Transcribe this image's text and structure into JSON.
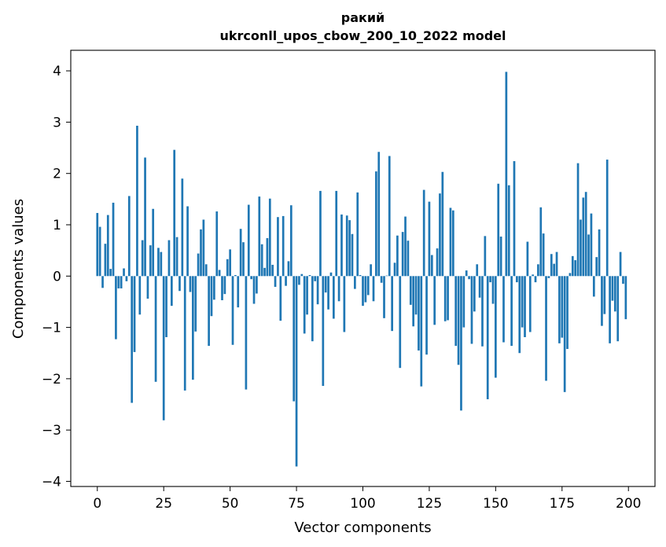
{
  "chart_data": {
    "type": "bar",
    "title_line1": "ракий",
    "title_line2": "ukrconll_upos_cbow_200_10_2022 model",
    "xlabel": "Vector components",
    "ylabel": "Components values",
    "xlim": [
      -10,
      210
    ],
    "ylim": [
      -4.1,
      4.4
    ],
    "xticks": [
      0,
      25,
      50,
      75,
      100,
      125,
      150,
      175,
      200
    ],
    "xtick_labels": [
      "0",
      "25",
      "50",
      "75",
      "100",
      "125",
      "150",
      "175",
      "200"
    ],
    "yticks": [
      -4,
      -3,
      -2,
      -1,
      0,
      1,
      2,
      3,
      4
    ],
    "ytick_labels": [
      "−4",
      "−3",
      "−2",
      "−1",
      "0",
      "1",
      "2",
      "3",
      "4"
    ],
    "bar_color": "#1f77b4",
    "grid": false,
    "x": [
      0,
      1,
      2,
      3,
      4,
      5,
      6,
      7,
      8,
      9,
      10,
      11,
      12,
      13,
      14,
      15,
      16,
      17,
      18,
      19,
      20,
      21,
      22,
      23,
      24,
      25,
      26,
      27,
      28,
      29,
      30,
      31,
      32,
      33,
      34,
      35,
      36,
      37,
      38,
      39,
      40,
      41,
      42,
      43,
      44,
      45,
      46,
      47,
      48,
      49,
      50,
      51,
      52,
      53,
      54,
      55,
      56,
      57,
      58,
      59,
      60,
      61,
      62,
      63,
      64,
      65,
      66,
      67,
      68,
      69,
      70,
      71,
      72,
      73,
      74,
      75,
      76,
      77,
      78,
      79,
      80,
      81,
      82,
      83,
      84,
      85,
      86,
      87,
      88,
      89,
      90,
      91,
      92,
      93,
      94,
      95,
      96,
      97,
      98,
      99,
      100,
      101,
      102,
      103,
      104,
      105,
      106,
      107,
      108,
      109,
      110,
      111,
      112,
      113,
      114,
      115,
      116,
      117,
      118,
      119,
      120,
      121,
      122,
      123,
      124,
      125,
      126,
      127,
      128,
      129,
      130,
      131,
      132,
      133,
      134,
      135,
      136,
      137,
      138,
      139,
      140,
      141,
      142,
      143,
      144,
      145,
      146,
      147,
      148,
      149,
      150,
      151,
      152,
      153,
      154,
      155,
      156,
      157,
      158,
      159,
      160,
      161,
      162,
      163,
      164,
      165,
      166,
      167,
      168,
      169,
      170,
      171,
      172,
      173,
      174,
      175,
      176,
      177,
      178,
      179,
      180,
      181,
      182,
      183,
      184,
      185,
      186,
      187,
      188,
      189,
      190,
      191,
      192,
      193,
      194,
      195,
      196,
      197,
      198,
      199
    ],
    "values": [
      1.23,
      0.96,
      -0.23,
      0.63,
      1.19,
      0.14,
      1.43,
      -1.23,
      -0.24,
      -0.24,
      0.15,
      -0.1,
      1.56,
      -2.47,
      -1.48,
      2.93,
      -0.75,
      0.7,
      2.31,
      -0.44,
      0.6,
      1.31,
      -2.06,
      0.55,
      0.47,
      -2.81,
      -1.19,
      0.7,
      -0.58,
      2.46,
      0.76,
      -0.29,
      1.9,
      -2.23,
      1.36,
      -0.31,
      -2.02,
      -1.08,
      0.44,
      0.91,
      1.1,
      0.23,
      -1.36,
      -0.78,
      -0.46,
      1.26,
      0.12,
      -0.47,
      -0.35,
      0.33,
      0.52,
      -1.34,
      0.02,
      -0.61,
      0.92,
      0.66,
      -2.21,
      1.39,
      -0.06,
      -0.54,
      -0.34,
      1.55,
      0.62,
      0.16,
      0.74,
      1.51,
      0.22,
      -0.21,
      1.15,
      -0.87,
      1.17,
      -0.19,
      0.29,
      1.38,
      -2.44,
      -3.71,
      -0.17,
      0.04,
      -1.12,
      -0.75,
      0.02,
      -1.27,
      -0.1,
      -0.55,
      1.66,
      -2.14,
      -0.32,
      -0.65,
      0.07,
      -0.83,
      1.66,
      -0.49,
      1.2,
      -1.09,
      1.18,
      1.09,
      0.82,
      -0.25,
      1.63,
      0.02,
      -0.58,
      -0.51,
      -0.37,
      0.23,
      -0.49,
      2.04,
      2.42,
      -0.13,
      -0.82,
      0.01,
      2.34,
      -1.07,
      0.26,
      0.79,
      -1.79,
      0.86,
      1.16,
      0.69,
      -0.56,
      -0.98,
      -0.75,
      -1.45,
      -2.15,
      1.68,
      -1.53,
      1.45,
      0.41,
      -0.95,
      0.54,
      1.61,
      2.03,
      -0.88,
      -0.86,
      1.33,
      1.28,
      -1.36,
      -1.73,
      -2.62,
      -1.0,
      0.11,
      -0.06,
      -1.32,
      -0.69,
      0.23,
      -0.42,
      -1.37,
      0.78,
      -2.4,
      -0.12,
      -0.54,
      -1.98,
      1.8,
      0.77,
      -1.29,
      3.98,
      1.77,
      -1.36,
      2.24,
      -0.12,
      -1.5,
      -1.0,
      -1.19,
      0.67,
      -1.09,
      0.03,
      -0.12,
      0.23,
      1.34,
      0.83,
      -2.04,
      -0.04,
      0.43,
      0.24,
      0.47,
      -1.31,
      -1.2,
      -2.26,
      -1.42,
      0.06,
      0.39,
      0.31,
      2.2,
      1.1,
      1.53,
      1.64,
      0.81,
      1.22,
      -0.4,
      0.37,
      0.91,
      -0.97,
      -0.74,
      2.27,
      -1.31,
      -0.48,
      -0.69,
      -1.27,
      0.47,
      -0.15,
      -0.84
    ]
  }
}
